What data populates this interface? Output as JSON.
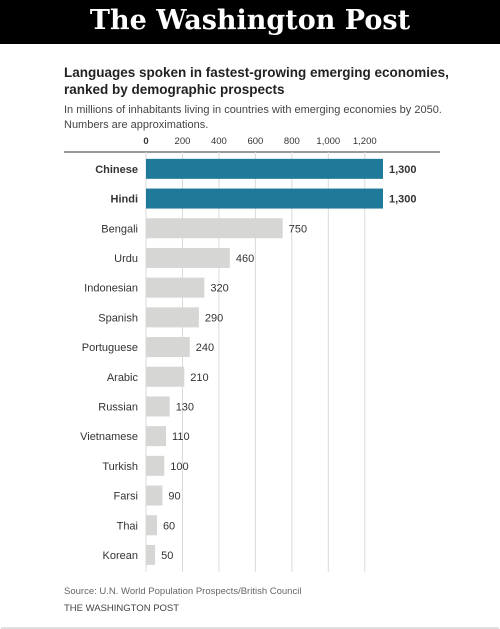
{
  "masthead": {
    "title": "The Washington Post"
  },
  "chart_data": {
    "type": "bar",
    "orientation": "horizontal",
    "title": "Languages spoken in fastest-growing emerging economies, ranked by demographic prospects",
    "subtitle": "In millions of inhabitants living in countries with emerging economies by 2050. Numbers are approximations.",
    "categories": [
      "Chinese",
      "Hindi",
      "Bengali",
      "Urdu",
      "Indonesian",
      "Spanish",
      "Portuguese",
      "Arabic",
      "Russian",
      "Vietnamese",
      "Turkish",
      "Farsi",
      "Thai",
      "Korean"
    ],
    "values": [
      1300,
      1300,
      750,
      460,
      320,
      290,
      240,
      210,
      130,
      110,
      100,
      90,
      60,
      50
    ],
    "value_labels": [
      "1,300",
      "1,300",
      "750",
      "460",
      "320",
      "290",
      "240",
      "210",
      "130",
      "110",
      "100",
      "90",
      "60",
      "50"
    ],
    "highlighted": [
      "Chinese",
      "Hindi"
    ],
    "xticks": [
      0,
      200,
      400,
      600,
      800,
      1000,
      1200
    ],
    "xtick_labels": [
      "0",
      "200",
      "400",
      "600",
      "800",
      "1,000",
      "1,200"
    ],
    "xlim": [
      0,
      1300
    ],
    "grid": true,
    "xlabel": "",
    "ylabel": "",
    "colors": {
      "highlight": "#1f7a9a",
      "default": "#d6d6d4",
      "grid": "#d9d9d9"
    }
  },
  "footer": {
    "source": "Source: U.N. World Population Prospects/British Council",
    "credit": "THE WASHINGTON POST"
  }
}
